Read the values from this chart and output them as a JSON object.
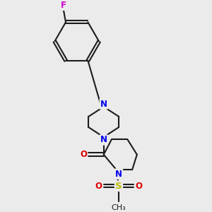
{
  "bg": "#ebebeb",
  "bc": "#1c1c1c",
  "nc": "#0000ee",
  "oc": "#dd0000",
  "fc": "#cc00cc",
  "sc": "#bbbb00",
  "lw": 1.5,
  "fs": 8.5,
  "dpi": 100,
  "fw": 3.0,
  "fh": 3.0,
  "xlim": [
    0.0,
    1.0
  ],
  "ylim": [
    0.0,
    1.0
  ]
}
